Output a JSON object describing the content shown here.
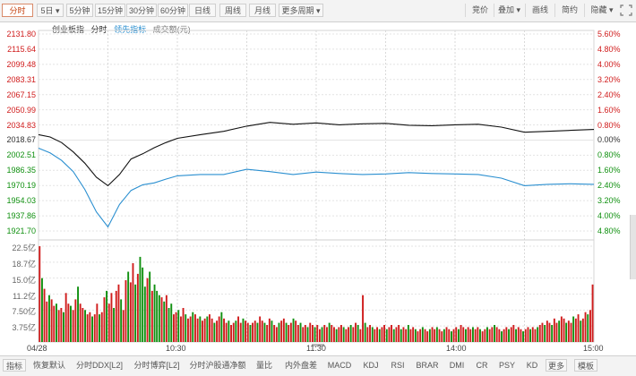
{
  "toolbar": {
    "left_buttons": [
      "分时",
      "5日",
      "5分钟",
      "15分钟",
      "30分钟",
      "60分钟",
      "日线",
      "周线",
      "月线",
      "更多周期"
    ],
    "right_buttons": [
      "竞价",
      "叠加",
      "画线",
      "简约",
      "隐藏"
    ],
    "active": "分时"
  },
  "legend": {
    "index_name": "创业板指",
    "mode": "分时",
    "lead_label": "领先指标",
    "volume_label": "成交额(元)"
  },
  "colors": {
    "up": "#d01c1c",
    "down": "#109010",
    "price_line": "#111111",
    "lead_line": "#2a8fd0",
    "grid": "#e4e4e4",
    "active_tab": "#c4420f"
  },
  "chart_data": {
    "type": "line",
    "title": "",
    "series": [
      {
        "name": "创业板指",
        "x": [
          "09:30",
          "09:35",
          "09:40",
          "09:45",
          "09:50",
          "09:55",
          "10:00",
          "10:05",
          "10:10",
          "10:15",
          "10:20",
          "10:25",
          "10:30",
          "10:40",
          "10:50",
          "11:00",
          "11:10",
          "11:20",
          "11:30",
          "13:10",
          "13:20",
          "13:30",
          "13:40",
          "13:50",
          "14:00",
          "14:10",
          "14:20",
          "14:30",
          "14:40",
          "14:50",
          "15:00"
        ],
        "values": [
          2024.5,
          2022.0,
          2016.0,
          2006.0,
          1994.0,
          1979.0,
          1970.0,
          1982.0,
          1998.5,
          2004.0,
          2010.5,
          2016.0,
          2020.5,
          2024.5,
          2028.0,
          2033.5,
          2037.5,
          2035.5,
          2037.0,
          2035.0,
          2036.0,
          2036.5,
          2034.5,
          2034.0,
          2035.0,
          2035.5,
          2032.5,
          2027.0,
          2028.0,
          2029.0,
          2030.0
        ]
      },
      {
        "name": "领先指标",
        "x": [
          "09:30",
          "09:35",
          "09:40",
          "09:45",
          "09:50",
          "09:55",
          "10:00",
          "10:05",
          "10:10",
          "10:15",
          "10:20",
          "10:25",
          "10:30",
          "10:40",
          "10:50",
          "11:00",
          "11:10",
          "11:20",
          "11:30",
          "13:10",
          "13:20",
          "13:30",
          "13:40",
          "13:50",
          "14:00",
          "14:10",
          "14:20",
          "14:30",
          "14:40",
          "14:50",
          "15:00"
        ],
        "values": [
          2010.0,
          2005.0,
          1997.0,
          1985.0,
          1966.0,
          1942.0,
          1926.0,
          1950.0,
          1965.0,
          1971.0,
          1973.0,
          1977.0,
          1980.5,
          1982.0,
          1982.0,
          1987.5,
          1985.0,
          1982.0,
          1984.5,
          1983.0,
          1982.0,
          1982.5,
          1984.0,
          1983.0,
          1982.5,
          1982.0,
          1978.0,
          1970.0,
          1971.5,
          1972.0,
          1971.5
        ]
      }
    ],
    "y_price_ticks": [
      "2131.80",
      "2115.64",
      "2099.48",
      "2083.31",
      "2067.15",
      "2050.99",
      "2034.83",
      "2018.67",
      "2002.51",
      "1986.35",
      "1970.19",
      "1954.03",
      "1937.86",
      "1921.70"
    ],
    "y_pct_ticks": [
      "5.60%",
      "4.80%",
      "4.00%",
      "3.20%",
      "2.40%",
      "1.60%",
      "0.80%",
      "0.00%",
      "0.80%",
      "1.60%",
      "2.40%",
      "3.20%",
      "4.00%",
      "4.80%"
    ],
    "ylim": [
      1921.7,
      2131.8
    ],
    "prev_close": 2018.67,
    "volume": {
      "ticks": [
        "22.5亿",
        "18.7亿",
        "15.0亿",
        "11.2亿",
        "7.50亿",
        "3.75亿"
      ],
      "ylim_yi": [
        0,
        22.5
      ],
      "values_yi": [
        22.5,
        15.0,
        12.5,
        9.5,
        11.0,
        10.0,
        8.5,
        9.0,
        7.5,
        8.0,
        7.0,
        11.5,
        9.0,
        8.5,
        7.5,
        10.0,
        13.0,
        9.0,
        8.0,
        7.5,
        6.5,
        7.0,
        6.0,
        6.5,
        9.0,
        6.5,
        7.0,
        10.5,
        12.0,
        9.0,
        11.5,
        8.0,
        12.0,
        13.5,
        10.0,
        7.5,
        14.5,
        16.5,
        14.0,
        18.5,
        13.5,
        16.0,
        20.0,
        17.5,
        13.0,
        15.0,
        16.5,
        12.0,
        13.5,
        12.0,
        11.0,
        10.5,
        9.5,
        11.0,
        8.0,
        9.0,
        6.5,
        7.0,
        7.5,
        6.0,
        8.0,
        6.5,
        5.5,
        6.0,
        7.0,
        6.5,
        5.5,
        6.0,
        5.0,
        5.5,
        6.0,
        6.5,
        5.5,
        4.5,
        5.0,
        6.0,
        7.0,
        5.5,
        4.5,
        5.0,
        4.0,
        4.5,
        5.0,
        6.0,
        4.5,
        5.5,
        5.0,
        4.5,
        4.0,
        4.5,
        5.0,
        4.5,
        6.0,
        5.0,
        4.5,
        4.0,
        5.5,
        5.0,
        4.0,
        3.5,
        4.5,
        5.0,
        5.5,
        4.5,
        4.0,
        4.5,
        5.5,
        5.0,
        4.0,
        4.5,
        3.5,
        4.0,
        3.5,
        4.5,
        4.0,
        3.5,
        4.0,
        3.0,
        3.5,
        4.0,
        3.5,
        4.5,
        4.0,
        3.5,
        3.0,
        3.5,
        4.0,
        3.5,
        3.0,
        3.5,
        4.0,
        3.5,
        4.5,
        4.0,
        3.0,
        11.0,
        4.5,
        3.5,
        4.0,
        3.5,
        3.0,
        3.5,
        3.0,
        3.5,
        4.0,
        3.0,
        3.5,
        4.0,
        3.0,
        3.5,
        4.0,
        3.0,
        3.5,
        3.0,
        4.0,
        3.0,
        3.5,
        3.0,
        2.5,
        3.0,
        3.5,
        3.0,
        2.5,
        3.0,
        3.5,
        3.0,
        3.5,
        3.0,
        2.5,
        3.0,
        3.5,
        3.0,
        2.5,
        3.0,
        3.5,
        3.0,
        4.0,
        3.5,
        3.0,
        3.5,
        3.0,
        3.5,
        3.0,
        3.5,
        3.0,
        2.5,
        3.0,
        3.5,
        3.0,
        3.5,
        4.0,
        3.5,
        3.0,
        2.5,
        3.0,
        3.5,
        3.0,
        3.5,
        4.0,
        3.0,
        3.5,
        3.0,
        2.5,
        3.0,
        3.5,
        3.0,
        3.5,
        3.0,
        3.5,
        4.0,
        4.5,
        4.0,
        5.0,
        4.5,
        4.0,
        5.5,
        4.5,
        5.0,
        6.0,
        5.5,
        4.5,
        5.0,
        4.5,
        6.0,
        5.5,
        6.5,
        5.0,
        5.5,
        7.0,
        6.5,
        7.5,
        13.5
      ]
    },
    "x_time_labels": [
      "04/28",
      "10:30",
      "11:30",
      "14:00",
      "15:00"
    ]
  },
  "bottom_tabs": [
    "指标",
    "恢复默认",
    "分时DDX[L2]",
    "分时博弈[L2]",
    "分时沪股通净额",
    "量比",
    "内外盘差",
    "MACD",
    "KDJ",
    "RSI",
    "BRAR",
    "DMI",
    "CR",
    "PSY",
    "KD",
    "更多",
    "模板"
  ],
  "bottom_tabs_active": "指标"
}
